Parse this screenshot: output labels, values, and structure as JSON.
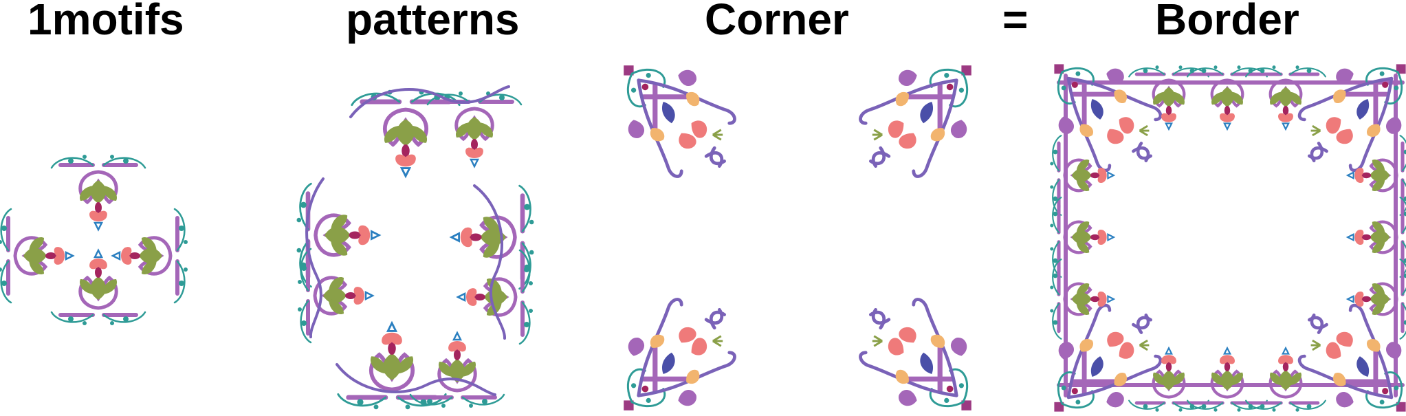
{
  "headers": {
    "motifs": "1motifs",
    "patterns": "patterns",
    "corner": "Corner",
    "equals": "=",
    "border": "Border"
  },
  "colors": {
    "purple": "#7a62b8",
    "lilac": "#a466b8",
    "teal": "#2e9b96",
    "olive": "#8aa048",
    "coral": "#ef7a7a",
    "magenta": "#a4245e",
    "orange": "#f2b46e",
    "blue": "#2a7fc0",
    "square": "#9c3a82"
  },
  "icons": {
    "motif": "ornament-motif-icon",
    "corner": "ornament-corner-icon",
    "border": "ornament-border-frame"
  }
}
